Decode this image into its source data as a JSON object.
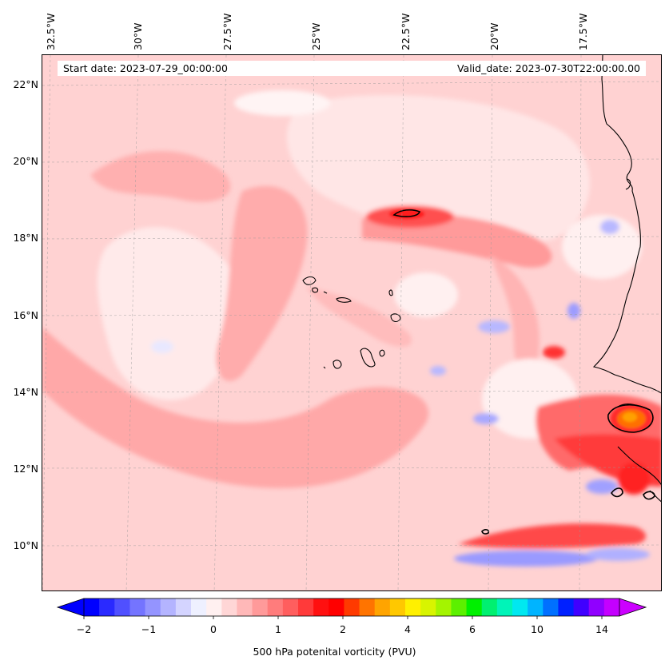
{
  "map": {
    "start_date": "Start date: 2023-07-29_00:00:00",
    "valid_date": "Valid_date: 2023-07-30T22:00:00.00",
    "longitude_labels": [
      "32.5°W",
      "30°W",
      "27.5°W",
      "25°W",
      "22.5°W",
      "20°W",
      "17.5°W"
    ],
    "latitude_labels": [
      "22°N",
      "20°N",
      "18°N",
      "16°N",
      "14°N",
      "12°N",
      "10°N"
    ],
    "extent": {
      "lon_min": -32.6,
      "lon_max": -15.3,
      "lat_min": 8.9,
      "lat_max": 22.8
    }
  },
  "colorbar": {
    "label": "500 hPa potenital vorticity (PVU)",
    "tick_labels": [
      "−2",
      "−1",
      "0",
      "1",
      "2",
      "4",
      "6",
      "10",
      "14"
    ],
    "colors": [
      "#0000ff",
      "#2a2aff",
      "#5050ff",
      "#7474ff",
      "#9494ff",
      "#b4b4ff",
      "#d4d4ff",
      "#eef0ff",
      "#fff0f0",
      "#ffd6d6",
      "#ffb8b8",
      "#ff9a9a",
      "#ff7c7c",
      "#ff5e5e",
      "#ff3a3a",
      "#ff1010",
      "#ff0000",
      "#ff3a00",
      "#ff7400",
      "#ffa400",
      "#ffc800",
      "#fff000",
      "#d8f400",
      "#a4f400",
      "#5cf000",
      "#00f000",
      "#00f070",
      "#00f4b8",
      "#00e8f0",
      "#00b4ff",
      "#0070ff",
      "#0020ff",
      "#4000ff",
      "#9000ff",
      "#c400ff"
    ],
    "under_color": "#0000ff",
    "over_color": "#cc00ff"
  }
}
